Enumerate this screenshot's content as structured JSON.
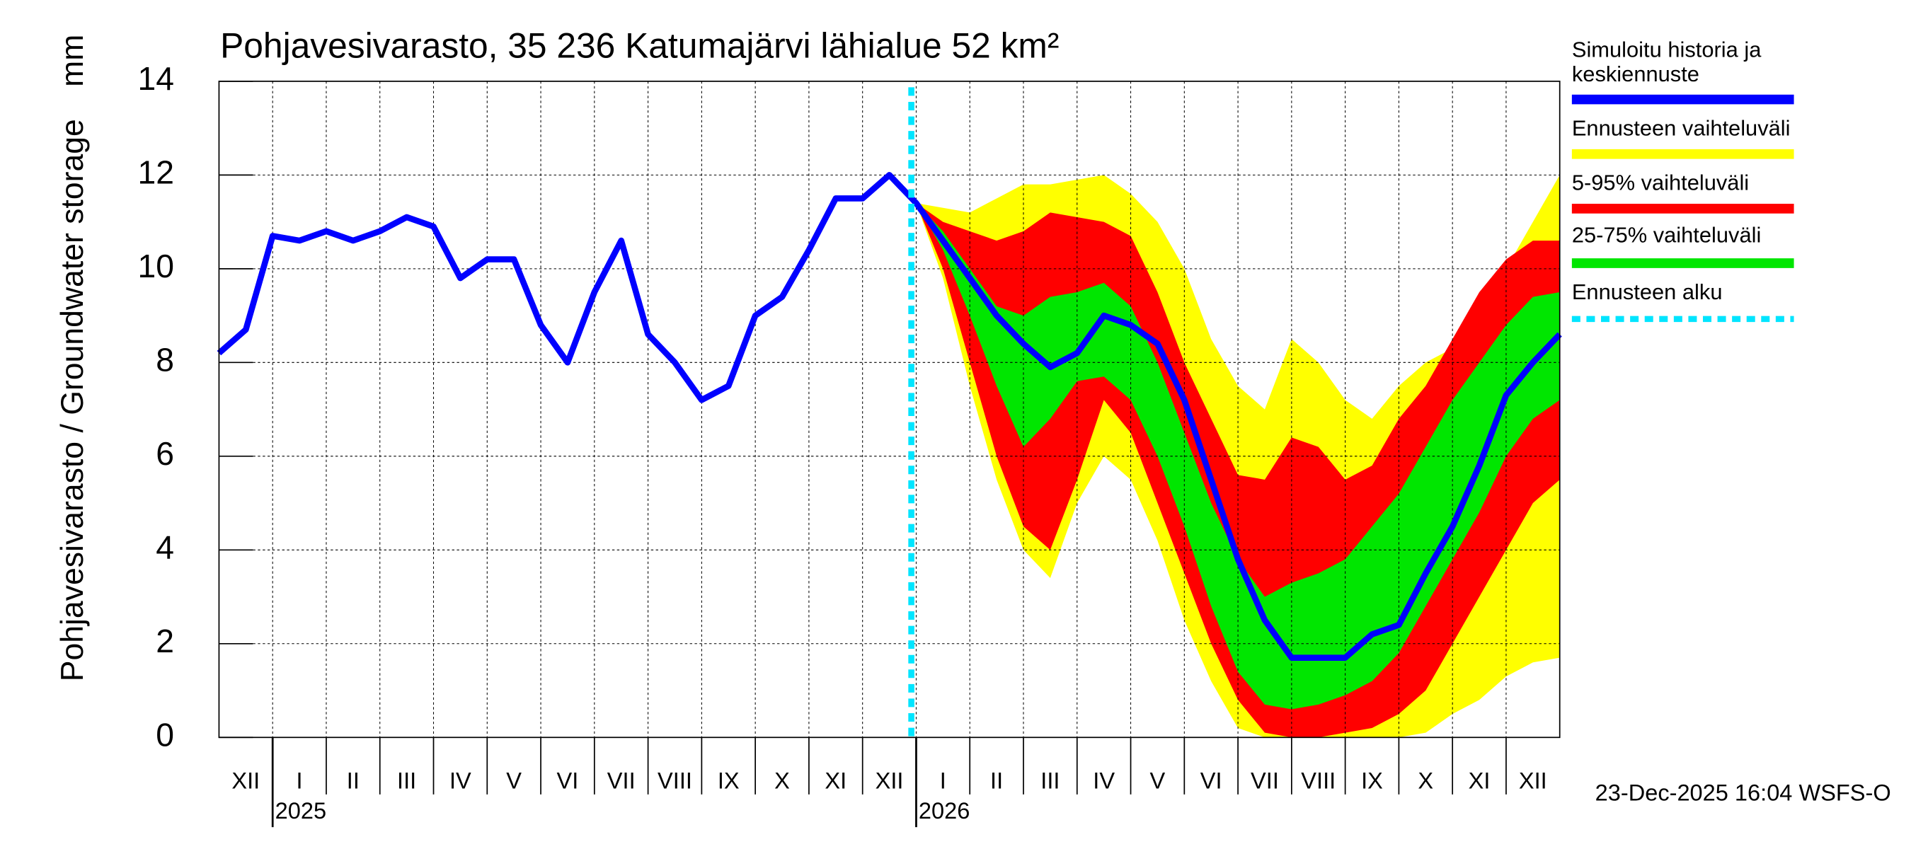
{
  "chart_data": {
    "type": "band-line",
    "title": "Pohjavesivarasto, 35 236 Katumajärvi lähialue 52 km²",
    "y_label": "Pohjavesivarasto / Groundwater storage",
    "y_unit": "mm",
    "footer": "23-Dec-2025 16:04 WSFS-O",
    "months": [
      "XII",
      "I",
      "II",
      "III",
      "IV",
      "V",
      "VI",
      "VII",
      "VIII",
      "IX",
      "X",
      "XI",
      "XII",
      "I",
      "II",
      "III",
      "IV",
      "V",
      "VI",
      "VII",
      "VIII",
      "IX",
      "X",
      "XI",
      "XII"
    ],
    "year_labels": [
      null,
      "2025",
      null,
      null,
      null,
      null,
      null,
      null,
      null,
      null,
      null,
      null,
      null,
      "2026",
      null,
      null,
      null,
      null,
      null,
      null,
      null,
      null,
      null,
      null,
      null
    ],
    "ylim": [
      0,
      14
    ],
    "yticks": [
      0,
      2,
      4,
      6,
      8,
      10,
      12,
      14
    ],
    "grid": true,
    "series": [
      {
        "name": "Simuloitu historia ja keskiennuste",
        "color": "#0000ff",
        "values": [
          8.2,
          8.7,
          10.7,
          10.6,
          10.8,
          10.6,
          10.8,
          11.1,
          10.9,
          9.8,
          10.2,
          10.2,
          8.8,
          8.0,
          9.5,
          10.6,
          8.6,
          8.0,
          7.2,
          7.5,
          9.0,
          9.4,
          10.4,
          11.5,
          11.5,
          12.0,
          11.4,
          10.6,
          9.8,
          9.0,
          8.4,
          7.9,
          8.2,
          9.0,
          8.8,
          8.4,
          7.2,
          5.5,
          3.8,
          2.5,
          1.7,
          1.7,
          1.7,
          2.2,
          2.4,
          3.5,
          4.5,
          5.8,
          7.3,
          8.0,
          8.6
        ]
      },
      {
        "name": "Ennusteen vaihteluväli",
        "color": "#ffff00",
        "high": [
          null,
          null,
          null,
          null,
          null,
          null,
          null,
          null,
          null,
          null,
          null,
          null,
          null,
          null,
          null,
          null,
          null,
          null,
          null,
          null,
          null,
          null,
          null,
          null,
          null,
          null,
          11.4,
          11.3,
          11.2,
          11.5,
          11.8,
          11.8,
          11.9,
          12.0,
          11.6,
          11.0,
          10.0,
          8.5,
          7.5,
          7.0,
          8.5,
          8.0,
          7.2,
          6.8,
          7.5,
          8.0,
          8.3,
          9.0,
          10.0,
          11.0,
          12.0
        ],
        "low": [
          null,
          null,
          null,
          null,
          null,
          null,
          null,
          null,
          null,
          null,
          null,
          null,
          null,
          null,
          null,
          null,
          null,
          null,
          null,
          null,
          null,
          null,
          null,
          null,
          null,
          null,
          11.4,
          9.8,
          7.5,
          5.5,
          4.0,
          3.4,
          5.0,
          6.0,
          5.5,
          4.2,
          2.5,
          1.2,
          0.2,
          0.0,
          0.0,
          0.0,
          0.0,
          0.0,
          0.0,
          0.1,
          0.5,
          0.8,
          1.3,
          1.6,
          1.7
        ]
      },
      {
        "name": "5-95% vaihteluväli",
        "color": "#ff0000",
        "high": [
          null,
          null,
          null,
          null,
          null,
          null,
          null,
          null,
          null,
          null,
          null,
          null,
          null,
          null,
          null,
          null,
          null,
          null,
          null,
          null,
          null,
          null,
          null,
          null,
          null,
          null,
          11.4,
          11.0,
          10.8,
          10.6,
          10.8,
          11.2,
          11.1,
          11.0,
          10.7,
          9.5,
          8.0,
          6.8,
          5.6,
          5.5,
          6.4,
          6.2,
          5.5,
          5.8,
          6.8,
          7.5,
          8.5,
          9.5,
          10.2,
          10.6,
          10.6
        ],
        "low": [
          null,
          null,
          null,
          null,
          null,
          null,
          null,
          null,
          null,
          null,
          null,
          null,
          null,
          null,
          null,
          null,
          null,
          null,
          null,
          null,
          null,
          null,
          null,
          null,
          null,
          null,
          11.4,
          10.0,
          8.0,
          6.0,
          4.5,
          4.0,
          5.5,
          7.2,
          6.5,
          5.0,
          3.5,
          2.0,
          0.8,
          0.1,
          0.0,
          0.0,
          0.1,
          0.2,
          0.5,
          1.0,
          2.0,
          3.0,
          4.0,
          5.0,
          5.5
        ]
      },
      {
        "name": "25-75% vaihteluväli",
        "color": "#00e600",
        "high": [
          null,
          null,
          null,
          null,
          null,
          null,
          null,
          null,
          null,
          null,
          null,
          null,
          null,
          null,
          null,
          null,
          null,
          null,
          null,
          null,
          null,
          null,
          null,
          null,
          null,
          null,
          11.4,
          10.8,
          10.0,
          9.2,
          9.0,
          9.4,
          9.5,
          9.7,
          9.2,
          8.0,
          6.5,
          5.0,
          3.8,
          3.0,
          3.3,
          3.5,
          3.8,
          4.5,
          5.2,
          6.2,
          7.2,
          8.0,
          8.8,
          9.4,
          9.5
        ],
        "low": [
          null,
          null,
          null,
          null,
          null,
          null,
          null,
          null,
          null,
          null,
          null,
          null,
          null,
          null,
          null,
          null,
          null,
          null,
          null,
          null,
          null,
          null,
          null,
          null,
          null,
          null,
          11.4,
          10.4,
          9.0,
          7.5,
          6.2,
          6.8,
          7.6,
          7.7,
          7.2,
          6.0,
          4.5,
          2.8,
          1.4,
          0.7,
          0.6,
          0.7,
          0.9,
          1.2,
          1.8,
          2.8,
          3.8,
          4.8,
          6.0,
          6.8,
          7.2
        ]
      }
    ],
    "forecast_start": {
      "name": "Ennusteen alku",
      "color": "#00e5ff"
    }
  }
}
